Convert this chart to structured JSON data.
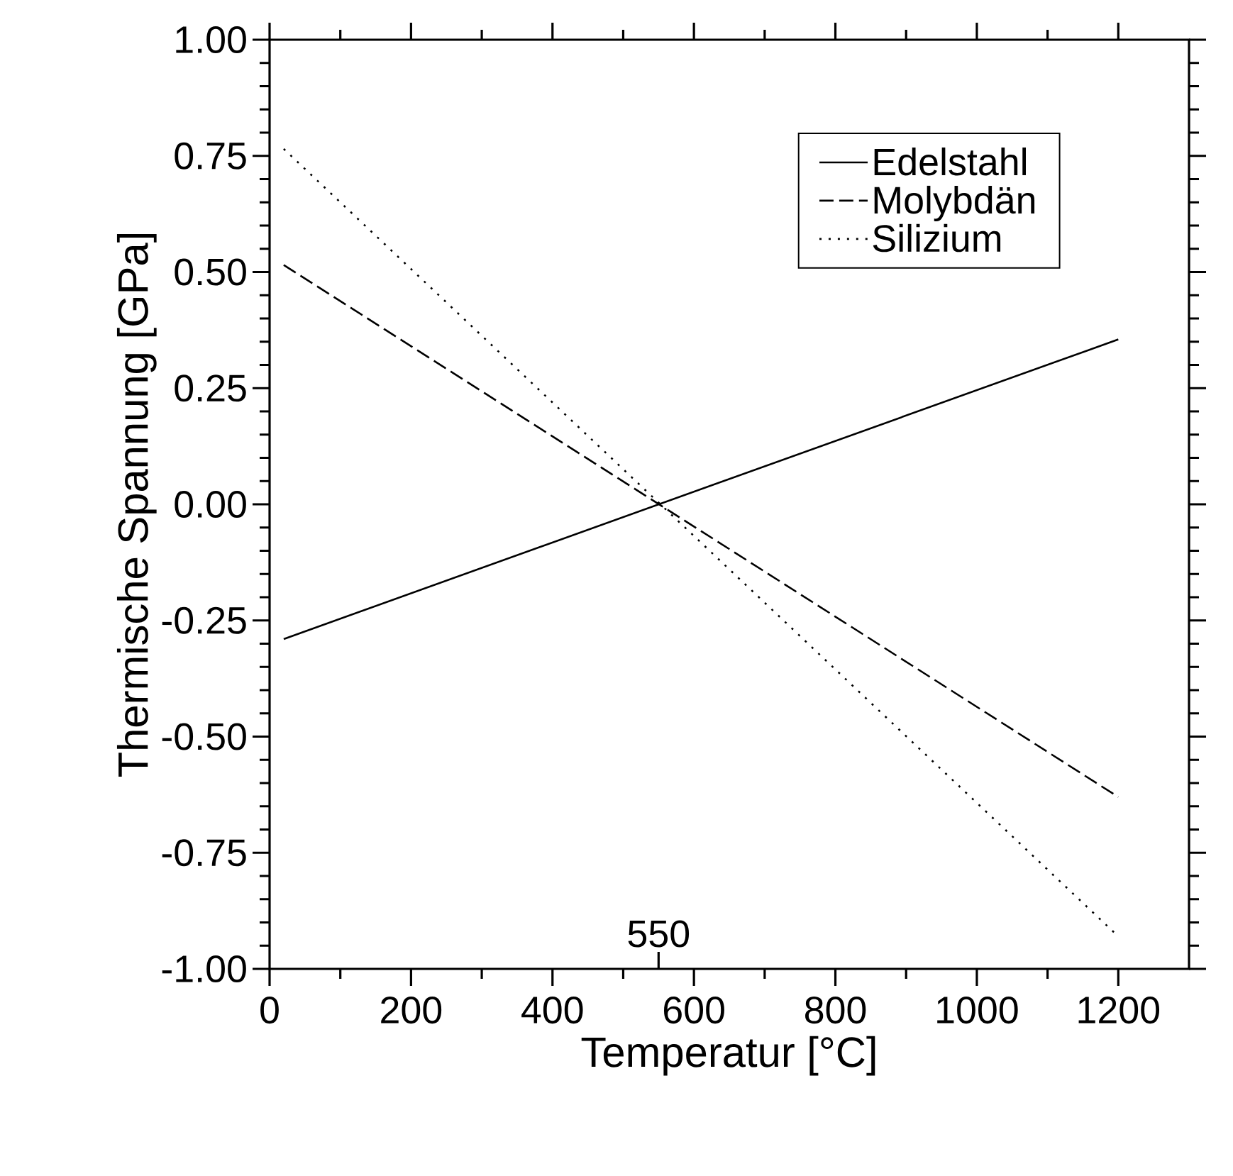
{
  "chart_data": {
    "type": "line",
    "xlabel": "Temperatur [°C]",
    "ylabel": "Thermische Spannung [GPa]",
    "x": [
      20,
      1200
    ],
    "series": [
      {
        "name": "Edelstahl",
        "color": "#000000",
        "line_style": "solid",
        "values": [
          -0.29,
          0.355
        ]
      },
      {
        "name": "Molybdän",
        "color": "#000000",
        "line_style": "dashed",
        "values": [
          0.515,
          -0.63
        ]
      },
      {
        "name": "Silizium",
        "color": "#000000",
        "line_style": "dotted",
        "values": [
          0.765,
          -0.93
        ]
      }
    ],
    "xlim": [
      0,
      1300
    ],
    "ylim": [
      -1.0,
      1.0
    ],
    "xticks": [
      0,
      200,
      400,
      600,
      800,
      1000,
      1200
    ],
    "yticks": [
      {
        "value": -1.0,
        "label": "-1.00"
      },
      {
        "value": -0.75,
        "label": "-0.75"
      },
      {
        "value": -0.5,
        "label": "-0.50"
      },
      {
        "value": -0.25,
        "label": "-0.25"
      },
      {
        "value": 0,
        "label": "0.00"
      },
      {
        "value": 0.25,
        "label": "0.25"
      },
      {
        "value": 0.5,
        "label": "0.50"
      },
      {
        "value": 0.75,
        "label": "0.75"
      },
      {
        "value": 1.0,
        "label": "1.00"
      }
    ],
    "ref_lines": [
      {
        "axis": "x",
        "value": 550,
        "label": "550"
      }
    ],
    "legend": "top right",
    "grid": false,
    "marker": "none"
  }
}
